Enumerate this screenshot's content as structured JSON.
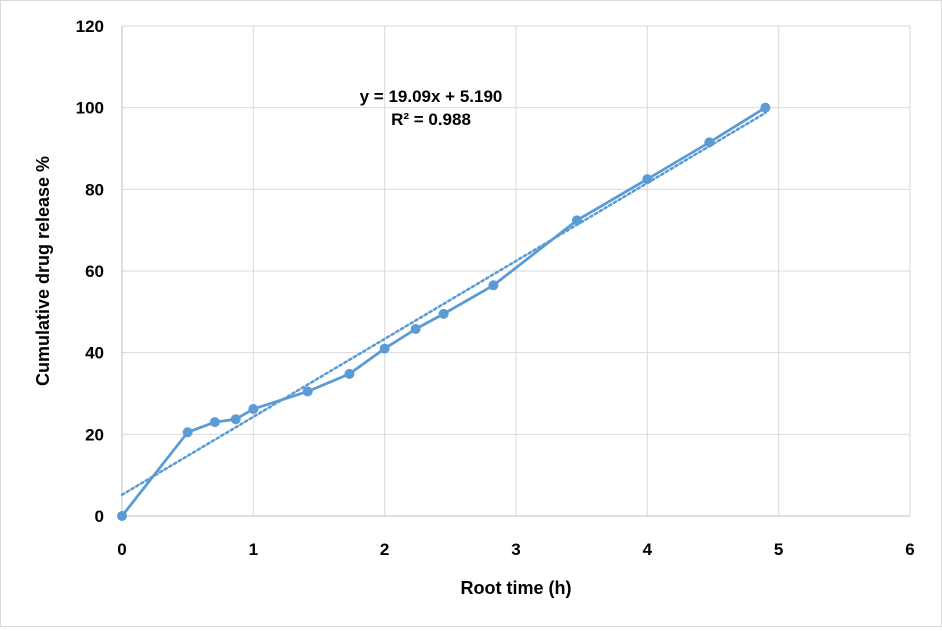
{
  "chart_data": {
    "type": "scatter",
    "title": "",
    "xlabel": "Root time (h)",
    "ylabel": "Cumulative drug release %",
    "xlim": [
      0,
      6
    ],
    "ylim": [
      0,
      120
    ],
    "xticks": [
      0,
      1,
      2,
      3,
      4,
      5,
      6
    ],
    "yticks": [
      0,
      20,
      40,
      60,
      80,
      100,
      120
    ],
    "grid": true,
    "legend": "none",
    "series": [
      {
        "style": "lines-and-markers",
        "color": "#5b9bd5",
        "x": [
          0,
          0.5,
          0.707,
          0.866,
          1.0,
          1.414,
          1.732,
          2.0,
          2.236,
          2.449,
          2.828,
          3.464,
          4.0,
          4.472,
          4.899
        ],
        "y": [
          0,
          20.5,
          23.0,
          23.7,
          26.2,
          30.5,
          34.8,
          41.0,
          45.8,
          49.5,
          56.5,
          72.4,
          82.5,
          91.5,
          100.0
        ]
      }
    ],
    "trendline": {
      "type": "linear",
      "style": "dotted",
      "color": "#5b9bd5",
      "slope": 19.09,
      "intercept": 5.19,
      "x_range": [
        0,
        4.899
      ],
      "equation_label": "y = 19.09x + 5.190",
      "r2_label": "R² = 0.988"
    }
  }
}
